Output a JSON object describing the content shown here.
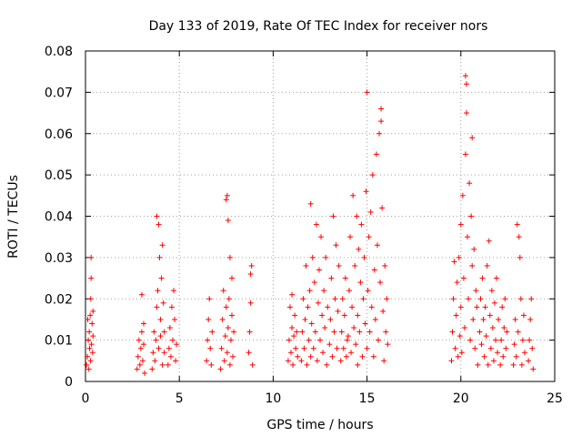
{
  "chart_data": {
    "type": "scatter",
    "title": "Day 133 of 2019, Rate Of TEC Index for receiver nors",
    "xlabel": "GPS time / hours",
    "ylabel": "ROTI / TECUs",
    "xlim": [
      0,
      25
    ],
    "ylim": [
      0,
      0.08
    ],
    "grid": true,
    "marker": "+",
    "color": "#ff0000",
    "x_ticks": [
      0,
      5,
      10,
      15,
      20,
      25
    ],
    "x_tick_labels": [
      "0",
      "5",
      "10",
      "15",
      "20",
      "25"
    ],
    "y_ticks": [
      0,
      0.01,
      0.02,
      0.03,
      0.04,
      0.05,
      0.06,
      0.07,
      0.08
    ],
    "y_tick_labels": [
      "0",
      "0.01",
      "0.02",
      "0.03",
      "0.04",
      "0.05",
      "0.06",
      "0.07",
      "0.08"
    ],
    "series": [
      {
        "name": "ROTI",
        "points": [
          [
            0.05,
            0.004
          ],
          [
            0.1,
            0.006
          ],
          [
            0.12,
            0.015
          ],
          [
            0.15,
            0.01
          ],
          [
            0.18,
            0.003
          ],
          [
            0.2,
            0.012
          ],
          [
            0.22,
            0.008
          ],
          [
            0.25,
            0.016
          ],
          [
            0.27,
            0.005
          ],
          [
            0.28,
            0.02
          ],
          [
            0.3,
            0.03
          ],
          [
            0.3,
            0.025
          ],
          [
            0.32,
            0.009
          ],
          [
            0.35,
            0.014
          ],
          [
            0.38,
            0.007
          ],
          [
            0.4,
            0.011
          ],
          [
            0.4,
            0.017
          ],
          [
            2.75,
            0.003
          ],
          [
            2.8,
            0.006
          ],
          [
            2.85,
            0.01
          ],
          [
            2.9,
            0.004
          ],
          [
            2.95,
            0.008
          ],
          [
            3.0,
            0.012
          ],
          [
            3.0,
            0.021
          ],
          [
            3.05,
            0.005
          ],
          [
            3.1,
            0.014
          ],
          [
            3.1,
            0.009
          ],
          [
            3.15,
            0.002
          ],
          [
            3.55,
            0.003
          ],
          [
            3.6,
            0.007
          ],
          [
            3.65,
            0.012
          ],
          [
            3.7,
            0.005
          ],
          [
            3.75,
            0.01
          ],
          [
            3.8,
            0.018
          ],
          [
            3.8,
            0.04
          ],
          [
            3.85,
            0.022
          ],
          [
            3.9,
            0.008
          ],
          [
            3.9,
            0.038
          ],
          [
            3.95,
            0.03
          ],
          [
            4.0,
            0.015
          ],
          [
            4.0,
            0.011
          ],
          [
            4.05,
            0.025
          ],
          [
            4.1,
            0.004
          ],
          [
            4.1,
            0.033
          ],
          [
            4.15,
            0.019
          ],
          [
            4.2,
            0.007
          ],
          [
            4.2,
            0.012
          ],
          [
            4.4,
            0.004
          ],
          [
            4.45,
            0.008
          ],
          [
            4.5,
            0.013
          ],
          [
            4.55,
            0.006
          ],
          [
            4.6,
            0.018
          ],
          [
            4.65,
            0.01
          ],
          [
            4.7,
            0.022
          ],
          [
            4.75,
            0.015
          ],
          [
            4.8,
            0.005
          ],
          [
            4.85,
            0.009
          ],
          [
            6.45,
            0.005
          ],
          [
            6.5,
            0.01
          ],
          [
            6.55,
            0.015
          ],
          [
            6.6,
            0.02
          ],
          [
            6.65,
            0.008
          ],
          [
            6.7,
            0.004
          ],
          [
            6.75,
            0.012
          ],
          [
            7.2,
            0.003
          ],
          [
            7.25,
            0.008
          ],
          [
            7.3,
            0.015
          ],
          [
            7.35,
            0.022
          ],
          [
            7.4,
            0.005
          ],
          [
            7.45,
            0.011
          ],
          [
            7.5,
            0.018
          ],
          [
            7.5,
            0.044
          ],
          [
            7.55,
            0.007
          ],
          [
            7.55,
            0.045
          ],
          [
            7.6,
            0.013
          ],
          [
            7.6,
            0.039
          ],
          [
            7.65,
            0.02
          ],
          [
            7.7,
            0.004
          ],
          [
            7.7,
            0.03
          ],
          [
            7.75,
            0.01
          ],
          [
            7.8,
            0.016
          ],
          [
            7.8,
            0.025
          ],
          [
            7.85,
            0.006
          ],
          [
            7.9,
            0.012
          ],
          [
            8.7,
            0.007
          ],
          [
            8.75,
            0.012
          ],
          [
            8.8,
            0.019
          ],
          [
            8.8,
            0.026
          ],
          [
            8.85,
            0.028
          ],
          [
            8.9,
            0.004
          ],
          [
            10.8,
            0.005
          ],
          [
            10.85,
            0.01
          ],
          [
            10.9,
            0.018
          ],
          [
            10.95,
            0.007
          ],
          [
            11.0,
            0.013
          ],
          [
            11.0,
            0.021
          ],
          [
            11.05,
            0.004
          ],
          [
            11.1,
            0.011
          ],
          [
            11.15,
            0.016
          ],
          [
            11.2,
            0.008
          ],
          [
            11.25,
            0.012
          ],
          [
            11.3,
            0.006
          ],
          [
            11.5,
            0.005
          ],
          [
            11.55,
            0.012
          ],
          [
            11.6,
            0.02
          ],
          [
            11.65,
            0.008
          ],
          [
            11.7,
            0.015
          ],
          [
            11.75,
            0.028
          ],
          [
            11.8,
            0.004
          ],
          [
            11.85,
            0.018
          ],
          [
            11.9,
            0.01
          ],
          [
            11.95,
            0.022
          ],
          [
            12.0,
            0.006
          ],
          [
            12.0,
            0.043
          ],
          [
            12.05,
            0.014
          ],
          [
            12.1,
            0.03
          ],
          [
            12.15,
            0.008
          ],
          [
            12.2,
            0.024
          ],
          [
            12.25,
            0.012
          ],
          [
            12.3,
            0.038
          ],
          [
            12.35,
            0.005
          ],
          [
            12.4,
            0.019
          ],
          [
            12.45,
            0.027
          ],
          [
            12.5,
            0.01
          ],
          [
            12.55,
            0.035
          ],
          [
            12.6,
            0.016
          ],
          [
            12.65,
            0.007
          ],
          [
            12.7,
            0.022
          ],
          [
            12.75,
            0.013
          ],
          [
            12.8,
            0.03
          ],
          [
            12.85,
            0.004
          ],
          [
            12.9,
            0.018
          ],
          [
            13.0,
            0.009
          ],
          [
            13.05,
            0.015
          ],
          [
            13.1,
            0.025
          ],
          [
            13.15,
            0.006
          ],
          [
            13.2,
            0.04
          ],
          [
            13.25,
            0.012
          ],
          [
            13.3,
            0.02
          ],
          [
            13.35,
            0.033
          ],
          [
            13.4,
            0.008
          ],
          [
            13.45,
            0.017
          ],
          [
            13.5,
            0.028
          ],
          [
            13.6,
            0.005
          ],
          [
            13.65,
            0.012
          ],
          [
            13.7,
            0.02
          ],
          [
            13.75,
            0.008
          ],
          [
            13.8,
            0.016
          ],
          [
            13.85,
            0.025
          ],
          [
            13.9,
            0.006
          ],
          [
            13.95,
            0.01
          ],
          [
            14.0,
            0.011
          ],
          [
            14.05,
            0.022
          ],
          [
            14.1,
            0.035
          ],
          [
            14.15,
            0.007
          ],
          [
            14.2,
            0.018
          ],
          [
            14.25,
            0.045
          ],
          [
            14.3,
            0.013
          ],
          [
            14.35,
            0.028
          ],
          [
            14.4,
            0.009
          ],
          [
            14.45,
            0.04
          ],
          [
            14.5,
            0.016
          ],
          [
            14.5,
            0.004
          ],
          [
            14.55,
            0.032
          ],
          [
            14.6,
            0.012
          ],
          [
            14.65,
            0.024
          ],
          [
            14.7,
            0.038
          ],
          [
            14.75,
            0.006
          ],
          [
            14.8,
            0.02
          ],
          [
            14.85,
            0.03
          ],
          [
            14.9,
            0.014
          ],
          [
            14.95,
            0.046
          ],
          [
            15.0,
            0.008
          ],
          [
            15.0,
            0.07
          ],
          [
            15.05,
            0.022
          ],
          [
            15.1,
            0.035
          ],
          [
            15.15,
            0.012
          ],
          [
            15.2,
            0.041
          ],
          [
            15.25,
            0.018
          ],
          [
            15.3,
            0.05
          ],
          [
            15.35,
            0.006
          ],
          [
            15.4,
            0.027
          ],
          [
            15.45,
            0.015
          ],
          [
            15.5,
            0.055
          ],
          [
            15.55,
            0.033
          ],
          [
            15.6,
            0.01
          ],
          [
            15.65,
            0.06
          ],
          [
            15.7,
            0.024
          ],
          [
            15.75,
            0.066
          ],
          [
            15.75,
            0.063
          ],
          [
            15.8,
            0.042
          ],
          [
            15.85,
            0.017
          ],
          [
            15.9,
            0.005
          ],
          [
            15.95,
            0.028
          ],
          [
            16.0,
            0.012
          ],
          [
            16.05,
            0.02
          ],
          [
            16.1,
            0.009
          ],
          [
            19.5,
            0.005
          ],
          [
            19.55,
            0.012
          ],
          [
            19.6,
            0.02
          ],
          [
            19.65,
            0.029
          ],
          [
            19.7,
            0.008
          ],
          [
            19.75,
            0.016
          ],
          [
            19.8,
            0.024
          ],
          [
            19.85,
            0.006
          ],
          [
            19.9,
            0.03
          ],
          [
            19.95,
            0.011
          ],
          [
            20.0,
            0.038
          ],
          [
            20.0,
            0.018
          ],
          [
            20.05,
            0.007
          ],
          [
            20.1,
            0.045
          ],
          [
            20.15,
            0.025
          ],
          [
            20.2,
            0.013
          ],
          [
            20.25,
            0.055
          ],
          [
            20.25,
            0.074
          ],
          [
            20.3,
            0.065
          ],
          [
            20.3,
            0.072
          ],
          [
            20.35,
            0.035
          ],
          [
            20.4,
            0.02
          ],
          [
            20.45,
            0.048
          ],
          [
            20.5,
            0.01
          ],
          [
            20.55,
            0.04
          ],
          [
            20.6,
            0.059
          ],
          [
            20.6,
            0.028
          ],
          [
            20.65,
            0.015
          ],
          [
            20.7,
            0.032
          ],
          [
            20.75,
            0.008
          ],
          [
            20.8,
            0.022
          ],
          [
            20.85,
            0.018
          ],
          [
            20.9,
            0.004
          ],
          [
            21.0,
            0.012
          ],
          [
            21.05,
            0.02
          ],
          [
            21.1,
            0.009
          ],
          [
            21.15,
            0.025
          ],
          [
            21.2,
            0.015
          ],
          [
            21.25,
            0.006
          ],
          [
            21.3,
            0.018
          ],
          [
            21.35,
            0.011
          ],
          [
            21.4,
            0.028
          ],
          [
            21.45,
            0.004
          ],
          [
            21.5,
            0.034
          ],
          [
            21.55,
            0.016
          ],
          [
            21.6,
            0.008
          ],
          [
            21.65,
            0.022
          ],
          [
            21.7,
            0.013
          ],
          [
            21.75,
            0.005
          ],
          [
            21.8,
            0.019
          ],
          [
            21.85,
            0.01
          ],
          [
            21.9,
            0.025
          ],
          [
            21.95,
            0.007
          ],
          [
            22.0,
            0.015
          ],
          [
            22.1,
            0.004
          ],
          [
            22.15,
            0.01
          ],
          [
            22.2,
            0.018
          ],
          [
            22.25,
            0.006
          ],
          [
            22.3,
            0.013
          ],
          [
            22.35,
            0.02
          ],
          [
            22.4,
            0.008
          ],
          [
            22.45,
            0.012
          ],
          [
            22.8,
            0.004
          ],
          [
            22.85,
            0.009
          ],
          [
            22.9,
            0.015
          ],
          [
            22.95,
            0.006
          ],
          [
            23.0,
            0.038
          ],
          [
            23.05,
            0.012
          ],
          [
            23.1,
            0.035
          ],
          [
            23.15,
            0.03
          ],
          [
            23.2,
            0.02
          ],
          [
            23.25,
            0.004
          ],
          [
            23.3,
            0.01
          ],
          [
            23.35,
            0.016
          ],
          [
            23.4,
            0.007
          ],
          [
            23.6,
            0.005
          ],
          [
            23.65,
            0.01
          ],
          [
            23.7,
            0.015
          ],
          [
            23.75,
            0.02
          ],
          [
            23.8,
            0.008
          ],
          [
            23.85,
            0.003
          ]
        ]
      }
    ]
  }
}
